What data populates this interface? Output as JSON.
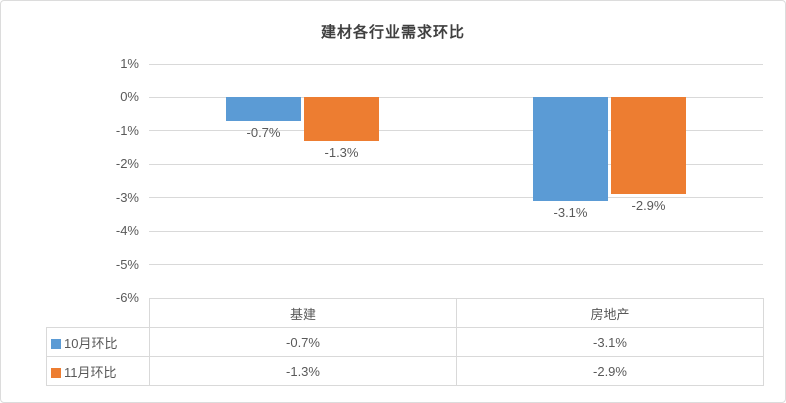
{
  "chart_data": {
    "type": "bar",
    "title": "建材各行业需求环比",
    "categories": [
      "基建",
      "房地产"
    ],
    "series": [
      {
        "name": "10月环比",
        "color": "#5B9BD5",
        "values": [
          -0.7,
          -3.1
        ]
      },
      {
        "name": "11月环比",
        "color": "#ED7D31",
        "values": [
          -1.3,
          -2.9
        ]
      }
    ],
    "data_labels": [
      [
        "-0.7%",
        "-3.1%"
      ],
      [
        "-1.3%",
        "-2.9%"
      ]
    ],
    "ylim": [
      -6,
      1
    ],
    "yticks": [
      "1%",
      "0%",
      "-1%",
      "-2%",
      "-3%",
      "-4%",
      "-5%",
      "-6%"
    ],
    "grid": true,
    "legend_position": "table-left",
    "colors": {
      "gridline": "#d9d9d9",
      "text": "#595959",
      "title": "#404040"
    },
    "table": {
      "corner": "",
      "header": [
        "基建",
        "房地产"
      ],
      "rows": [
        {
          "name": "10月环比",
          "values": [
            "-0.7%",
            "-3.1%"
          ]
        },
        {
          "name": "11月环比",
          "values": [
            "-1.3%",
            "-2.9%"
          ]
        }
      ]
    }
  }
}
